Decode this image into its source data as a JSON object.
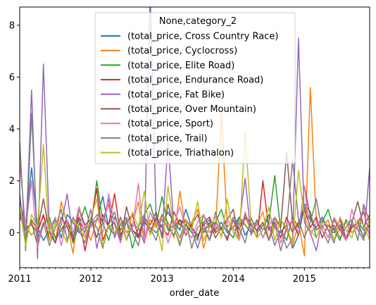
{
  "chart_data": {
    "type": "line",
    "xlabel": "order_date",
    "ylabel": "",
    "title": "",
    "legend_title": "None,category_2",
    "legend_position": "top-center",
    "grid": false,
    "x_start": "2011-01",
    "x_end": "2015-12",
    "xlim": [
      "2011-01",
      "2015-12"
    ],
    "ylim": [
      -1.35,
      8.7
    ],
    "x_ticks": [
      {
        "date": "2011-01",
        "label": "2011"
      },
      {
        "date": "2012-01",
        "label": "2012"
      },
      {
        "date": "2013-01",
        "label": "2013"
      },
      {
        "date": "2014-01",
        "label": "2014"
      },
      {
        "date": "2015-01",
        "label": "2015"
      }
    ],
    "y_ticks": [
      {
        "value": 0,
        "label": "0"
      },
      {
        "value": 2,
        "label": "2"
      },
      {
        "value": 4,
        "label": "4"
      },
      {
        "value": 6,
        "label": "6"
      },
      {
        "value": 8,
        "label": "8"
      }
    ],
    "series": [
      {
        "name": "(total_price, Cross Country Race)",
        "color": "#1f77b4",
        "values": [
          1.2,
          0.3,
          2.5,
          0.2,
          -0.3,
          0.1,
          0.5,
          -0.2,
          0.7,
          0.4,
          0.0,
          0.2,
          0.3,
          0.5,
          1.4,
          0.2,
          -0.1,
          0.3,
          0.6,
          0.1,
          -0.2,
          0.4,
          0.2,
          0.0,
          0.3,
          0.8,
          0.4,
          0.1,
          0.9,
          0.2,
          -0.1,
          0.3,
          0.5,
          0.1,
          0.4,
          0.0,
          0.2,
          0.6,
          -0.1,
          0.3,
          0.4,
          0.1,
          0.7,
          0.2,
          0.0,
          0.3,
          -0.6,
          -0.1,
          1.0,
          0.5,
          0.2,
          0.6,
          0.1,
          0.0,
          0.3,
          -0.2,
          0.2,
          0.4,
          0.1,
          0.3
        ]
      },
      {
        "name": "(total_price, Cyclocross)",
        "color": "#ff7f0e",
        "values": [
          0.7,
          0.3,
          -0.1,
          0.2,
          0.6,
          0.4,
          -0.4,
          1.2,
          0.3,
          -0.8,
          1.0,
          0.2,
          -0.3,
          0.5,
          0.4,
          1.1,
          -0.2,
          0.6,
          0.0,
          0.3,
          1.2,
          -0.4,
          0.5,
          0.2,
          0.7,
          0.4,
          -0.2,
          1.6,
          0.1,
          0.4,
          0.9,
          -0.6,
          0.3,
          0.0,
          4.6,
          0.2,
          0.5,
          -0.2,
          0.6,
          0.1,
          0.3,
          0.8,
          -0.3,
          0.2,
          0.5,
          0.1,
          -0.5,
          0.4,
          -0.9,
          5.6,
          0.4,
          0.2,
          0.5,
          -0.3,
          0.2,
          0.4,
          0.0,
          0.3,
          -0.2,
          0.5
        ]
      },
      {
        "name": "(total_price, Elite Road)",
        "color": "#2ca02c",
        "values": [
          0.9,
          0.1,
          0.4,
          -0.5,
          0.3,
          0.6,
          -0.2,
          0.1,
          0.5,
          -0.4,
          0.3,
          1.0,
          0.2,
          2.0,
          0.4,
          -0.3,
          0.6,
          0.1,
          0.5,
          -0.6,
          0.2,
          0.7,
          1.1,
          0.3,
          1.4,
          0.2,
          -0.1,
          0.5,
          0.3,
          0.0,
          -0.3,
          0.7,
          0.2,
          0.4,
          0.9,
          0.1,
          -0.2,
          0.6,
          0.3,
          0.0,
          0.5,
          -0.2,
          0.4,
          2.2,
          0.1,
          -0.3,
          0.6,
          0.2,
          1.1,
          0.8,
          -0.2,
          0.4,
          0.9,
          0.1,
          -0.3,
          0.5,
          0.2,
          0.4,
          -0.2,
          0.3
        ]
      },
      {
        "name": "(total_price, Endurance Road)",
        "color": "#d62728",
        "values": [
          0.6,
          0.2,
          0.3,
          0.0,
          0.7,
          -0.3,
          0.4,
          0.1,
          0.5,
          -0.2,
          0.6,
          -0.7,
          0.4,
          1.7,
          -0.3,
          0.3,
          1.5,
          -0.1,
          0.4,
          0.7,
          -0.2,
          0.5,
          0.0,
          0.6,
          0.2,
          -0.1,
          0.8,
          0.3,
          0.5,
          0.2,
          -0.2,
          0.4,
          0.6,
          0.0,
          0.2,
          -0.3,
          0.5,
          0.1,
          0.7,
          0.3,
          -0.2,
          2.0,
          0.1,
          0.4,
          -0.2,
          0.6,
          0.0,
          0.4,
          0.9,
          0.2,
          0.6,
          -0.2,
          0.3,
          0.1,
          0.5,
          -0.3,
          0.2,
          0.4,
          0.8,
          -0.1
        ]
      },
      {
        "name": "(total_price, Fat Bike)",
        "color": "#9467bd",
        "values": [
          1.5,
          -0.4,
          5.5,
          -1.0,
          6.5,
          0.1,
          -0.4,
          0.3,
          1.5,
          -0.2,
          0.5,
          0.0,
          0.9,
          -0.6,
          0.4,
          1.3,
          -0.2,
          0.6,
          -0.3,
          0.3,
          0.2,
          -0.4,
          9.3,
          0.5,
          -0.1,
          3.5,
          0.2,
          -0.5,
          0.3,
          0.1,
          -0.6,
          0.2,
          -0.3,
          0.4,
          0.1,
          -0.2,
          0.6,
          0.3,
          2.1,
          -0.1,
          0.4,
          -0.2,
          0.3,
          -0.5,
          0.1,
          -0.6,
          -0.2,
          7.5,
          0.4,
          0.0,
          -0.7,
          0.5,
          0.1,
          -0.4,
          0.6,
          -0.2,
          0.3,
          0.1,
          -0.3,
          2.5
        ]
      },
      {
        "name": "(total_price, Over Mountain)",
        "color": "#8c564b",
        "values": [
          0.8,
          -0.2,
          0.5,
          0.1,
          1.3,
          0.0,
          -0.4,
          0.6,
          0.2,
          -0.3,
          0.9,
          0.3,
          0.5,
          -0.2,
          0.7,
          0.2,
          0.4,
          -0.3,
          1.0,
          0.1,
          -0.1,
          0.6,
          0.3,
          0.8,
          -0.2,
          1.1,
          0.2,
          0.5,
          -0.1,
          0.3,
          0.7,
          0.0,
          0.4,
          -0.2,
          0.2,
          0.5,
          0.9,
          -0.2,
          0.6,
          0.3,
          0.1,
          0.4,
          -0.3,
          0.6,
          0.2,
          3.1,
          0.4,
          -0.1,
          1.8,
          0.6,
          0.1,
          0.3,
          -0.2,
          0.5,
          0.1,
          -0.3,
          0.4,
          1.2,
          0.2,
          0.7
        ]
      },
      {
        "name": "(total_price, Sport)",
        "color": "#e377c2",
        "values": [
          2.7,
          0.2,
          2.0,
          -0.6,
          0.4,
          0.1,
          0.6,
          -0.5,
          0.5,
          0.0,
          1.0,
          -0.2,
          0.3,
          0.7,
          0.0,
          1.5,
          0.3,
          -0.4,
          0.6,
          0.1,
          1.9,
          -0.3,
          0.8,
          0.2,
          0.5,
          -0.4,
          0.3,
          1.0,
          0.1,
          -0.2,
          0.4,
          0.7,
          0.0,
          0.3,
          -0.1,
          0.5,
          0.2,
          -0.3,
          0.8,
          0.1,
          0.4,
          -0.2,
          0.3,
          0.6,
          -0.4,
          0.2,
          0.5,
          0.0,
          1.8,
          -0.1,
          0.4,
          0.3,
          -0.2,
          0.6,
          0.2,
          -0.3,
          0.9,
          0.1,
          1.0,
          -0.2
        ]
      },
      {
        "name": "(total_price, Trail)",
        "color": "#7f7f7f",
        "values": [
          3.5,
          -0.7,
          4.6,
          -0.3,
          0.4,
          -0.5,
          0.2,
          0.9,
          -0.3,
          0.6,
          0.1,
          -0.4,
          0.5,
          0.2,
          -0.6,
          0.3,
          0.8,
          -0.2,
          0.4,
          0.0,
          -0.5,
          0.6,
          0.2,
          -0.3,
          0.7,
          0.1,
          0.3,
          -0.2,
          0.5,
          -0.6,
          0.2,
          0.4,
          -0.3,
          0.8,
          0.1,
          -0.2,
          0.5,
          0.2,
          -0.4,
          0.6,
          0.0,
          0.3,
          -0.3,
          0.4,
          -0.7,
          0.2,
          2.8,
          0.5,
          -0.2,
          0.4,
          1.3,
          0.1,
          -0.4,
          0.3,
          -0.2,
          0.2,
          0.5,
          -0.3,
          1.1,
          0.4
        ]
      },
      {
        "name": "(total_price, Triathalon)",
        "color": "#bcbd22",
        "values": [
          1.0,
          -0.5,
          0.7,
          0.2,
          3.4,
          -0.3,
          0.4,
          0.1,
          -0.4,
          0.5,
          0.2,
          -0.2,
          0.6,
          1.3,
          -0.5,
          0.3,
          0.0,
          0.4,
          -0.3,
          0.8,
          0.2,
          1.6,
          -0.1,
          0.4,
          -0.7,
          1.8,
          0.2,
          -0.4,
          0.5,
          0.1,
          1.2,
          -0.3,
          0.2,
          0.6,
          -0.2,
          1.3,
          0.0,
          -0.3,
          3.9,
          0.4,
          -0.2,
          0.1,
          1.0,
          -0.3,
          0.5,
          0.2,
          -0.4,
          2.4,
          0.6,
          0.1,
          -0.2,
          0.4,
          0.3,
          -0.3,
          0.6,
          0.1,
          -0.2,
          0.5,
          0.3,
          -0.3
        ]
      }
    ]
  }
}
